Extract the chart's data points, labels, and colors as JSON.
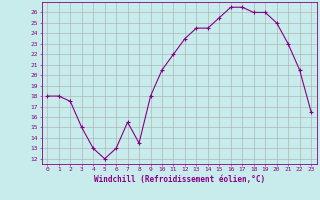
{
  "x": [
    0,
    1,
    2,
    3,
    4,
    5,
    6,
    7,
    8,
    9,
    10,
    11,
    12,
    13,
    14,
    15,
    16,
    17,
    18,
    19,
    20,
    21,
    22,
    23
  ],
  "y": [
    18,
    18,
    17.5,
    15,
    13,
    12,
    13,
    15.5,
    13.5,
    18,
    20.5,
    22,
    23.5,
    24.5,
    24.5,
    25.5,
    26.5,
    26.5,
    26,
    26,
    25,
    23,
    20.5,
    16.5
  ],
  "line_color": "#880088",
  "marker": "+",
  "bg_color": "#c8ecec",
  "grid_color": "#aaaaaa",
  "xlabel": "Windchill (Refroidissement éolien,°C)",
  "ylabel_ticks": [
    12,
    13,
    14,
    15,
    16,
    17,
    18,
    19,
    20,
    21,
    22,
    23,
    24,
    25,
    26
  ],
  "ylim": [
    11.5,
    27.0
  ],
  "xlim": [
    -0.5,
    23.5
  ],
  "xtick_labels": [
    "0",
    "1",
    "2",
    "3",
    "4",
    "5",
    "6",
    "7",
    "8",
    "9",
    "10",
    "11",
    "12",
    "13",
    "14",
    "15",
    "16",
    "17",
    "18",
    "19",
    "20",
    "21",
    "22",
    "23"
  ],
  "label_color": "#880088",
  "tick_color": "#880088",
  "tick_fontsize": 4.5,
  "xlabel_fontsize": 5.5
}
